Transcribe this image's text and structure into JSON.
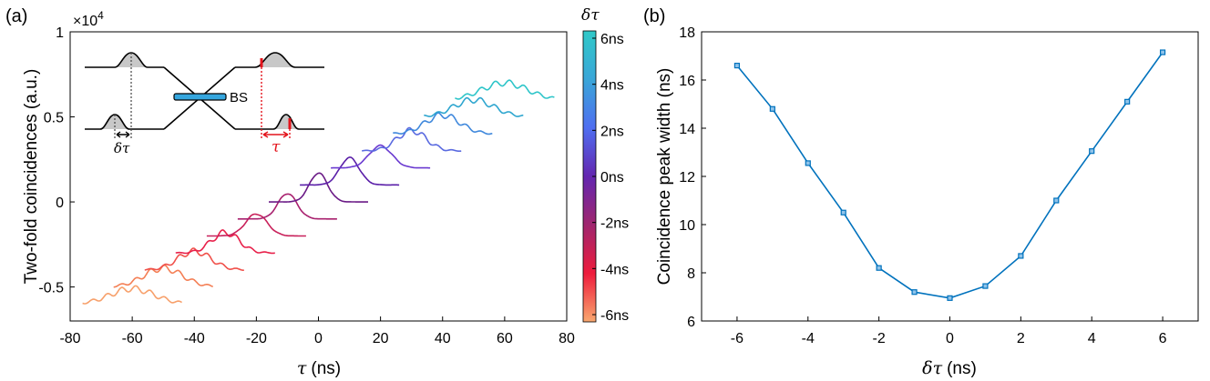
{
  "chart_data": [
    {
      "type": "line",
      "panel_label": "(a)",
      "xlabel_symbol": "τ",
      "xlabel": "(ns)",
      "ylabel": "Two-fold coincidences (a.u.)",
      "y_exponent_base": "×10",
      "y_exponent_power": "4",
      "xlim": [
        -80,
        80
      ],
      "ylim": [
        -0.7,
        1.0
      ],
      "xticks": [
        -80,
        -60,
        -40,
        -20,
        0,
        20,
        40,
        60,
        80
      ],
      "xtick_labels": [
        "-80",
        "-60",
        "-40",
        "-20",
        "0",
        "20",
        "40",
        "60",
        "80"
      ],
      "yticks": [
        -0.5,
        0,
        0.5,
        1
      ],
      "ytick_labels": [
        "-0.5",
        "0",
        "0.5",
        "1"
      ],
      "series_note": "Waterfall of coincidence histograms; each trace spans ±16 ns around its center and is offset vertically by 0.1 per 1 ns of delay.",
      "series": [
        {
          "delay_ns": -6,
          "center": -60,
          "baseline": -0.6,
          "peak_height": 0.09,
          "width_ns": 16.6,
          "color": "#f7a06b"
        },
        {
          "delay_ns": -5,
          "center": -50,
          "baseline": -0.5,
          "peak_height": 0.11,
          "width_ns": 14.8,
          "color": "#f47f55"
        },
        {
          "delay_ns": -4,
          "center": -40,
          "baseline": -0.4,
          "peak_height": 0.11,
          "width_ns": 12.6,
          "color": "#f0504a"
        },
        {
          "delay_ns": -3,
          "center": -30,
          "baseline": -0.3,
          "peak_height": 0.12,
          "width_ns": 10.5,
          "color": "#e8204a"
        },
        {
          "delay_ns": -2,
          "center": -20,
          "baseline": -0.2,
          "peak_height": 0.13,
          "width_ns": 8.2,
          "color": "#c8205a"
        },
        {
          "delay_ns": -1,
          "center": -10,
          "baseline": -0.1,
          "peak_height": 0.15,
          "width_ns": 7.2,
          "color": "#a8206e"
        },
        {
          "delay_ns": 0,
          "center": 0,
          "baseline": 0.0,
          "peak_height": 0.17,
          "width_ns": 6.9,
          "color": "#6a1a86"
        },
        {
          "delay_ns": 1,
          "center": 10,
          "baseline": 0.1,
          "peak_height": 0.16,
          "width_ns": 7.4,
          "color": "#5a1fa8"
        },
        {
          "delay_ns": 2,
          "center": 20,
          "baseline": 0.2,
          "peak_height": 0.13,
          "width_ns": 8.7,
          "color": "#6a3ad0"
        },
        {
          "delay_ns": 3,
          "center": 30,
          "baseline": 0.3,
          "peak_height": 0.12,
          "width_ns": 11.0,
          "color": "#5a6ae0"
        },
        {
          "delay_ns": 4,
          "center": 40,
          "baseline": 0.4,
          "peak_height": 0.11,
          "width_ns": 13.1,
          "color": "#3f88dc"
        },
        {
          "delay_ns": 5,
          "center": 50,
          "baseline": 0.5,
          "peak_height": 0.1,
          "width_ns": 15.1,
          "color": "#2ea6cf"
        },
        {
          "delay_ns": 6,
          "center": 60,
          "baseline": 0.6,
          "peak_height": 0.1,
          "width_ns": 17.2,
          "color": "#2ec5c9"
        }
      ],
      "colorbar": {
        "title_symbol": "δτ",
        "labels": [
          "6ns",
          "4ns",
          "2ns",
          "0ns",
          "-2ns",
          "-4ns",
          "-6ns"
        ],
        "stops": [
          "#30c9c8",
          "#3aa6d8",
          "#4f6ef0",
          "#6326b0",
          "#a0266e",
          "#ee1c3c",
          "#f9a86f"
        ]
      },
      "inset": {
        "splitter_label": "BS",
        "delay_symbol": "δτ",
        "tau_symbol": "τ",
        "accent_color": "#e4141c",
        "beam_color": "#35a6de"
      }
    },
    {
      "type": "line",
      "panel_label": "(b)",
      "xlabel_symbol": "δτ",
      "xlabel": "(ns)",
      "ylabel": "Coincidence peak width (ns)",
      "xlim": [
        -7,
        7
      ],
      "ylim": [
        6,
        18
      ],
      "xticks": [
        -6,
        -4,
        -2,
        0,
        2,
        4,
        6
      ],
      "xtick_labels": [
        "-6",
        "-4",
        "-2",
        "0",
        "2",
        "4",
        "6"
      ],
      "yticks": [
        6,
        8,
        10,
        12,
        14,
        16,
        18
      ],
      "ytick_labels": [
        "6",
        "8",
        "10",
        "12",
        "14",
        "16",
        "18"
      ],
      "series": [
        {
          "name": "peak width",
          "color": "#0072bd",
          "x": [
            -6,
            -5,
            -4,
            -3,
            -2,
            -1,
            0,
            1,
            2,
            3,
            4,
            5,
            6
          ],
          "values": [
            16.6,
            14.8,
            12.55,
            10.5,
            8.2,
            7.2,
            6.95,
            7.45,
            8.7,
            11.0,
            13.05,
            15.1,
            17.15
          ]
        }
      ]
    }
  ]
}
